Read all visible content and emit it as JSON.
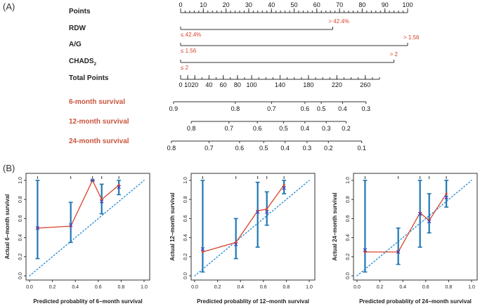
{
  "figure": {
    "panel_a_label": "(A)",
    "panel_b_label": "(B)"
  },
  "chart_data": [
    {
      "type": "nomogram",
      "rows": [
        {
          "key": "points",
          "label": "Points",
          "kind": "scale",
          "min": 0,
          "max": 100,
          "ticks": [
            0,
            10,
            20,
            30,
            40,
            50,
            60,
            70,
            80,
            90,
            100
          ],
          "minor_step": 2
        },
        {
          "key": "rdw",
          "label": "RDW",
          "kind": "binary",
          "low_label": "≤ 42.4%",
          "high_label": "> 42.4%",
          "low_points": 0,
          "high_points": 67
        },
        {
          "key": "ag",
          "label": "A/G",
          "kind": "binary",
          "low_label": "≤ 1.56",
          "high_label": "> 1.56",
          "low_points": 0,
          "high_points": 100
        },
        {
          "key": "chads",
          "label": "CHADS",
          "label_sub": "2",
          "kind": "binary",
          "low_label": "≤ 2",
          "high_label": "> 2",
          "low_points": 0,
          "high_points": 94
        },
        {
          "key": "total",
          "label": "Total Points",
          "kind": "scale",
          "min": 0,
          "max": 280,
          "ticks": [
            0,
            10,
            20,
            40,
            60,
            80,
            100,
            140,
            180,
            220,
            260
          ],
          "minor_step": 10
        },
        {
          "key": "s6",
          "label": "6-month survival",
          "kind": "prob",
          "ticks": [
            "0.9",
            "0.8",
            "0.7",
            "0.6",
            "0.5",
            "0.4",
            "0.3"
          ],
          "total_points": [
            -10,
            77,
            128,
            175,
            198,
            228,
            261
          ]
        },
        {
          "key": "s12",
          "label": "12-month survival",
          "kind": "prob",
          "ticks": [
            "0.8",
            "0.7",
            "0.6",
            "0.5",
            "0.4",
            "0.3",
            "0.2"
          ],
          "total_points": [
            15,
            68,
            108,
            145,
            175,
            205,
            233
          ]
        },
        {
          "key": "s24",
          "label": "24-month survival",
          "kind": "prob",
          "ticks": [
            "0.8",
            "0.7",
            "0.6",
            "0.5",
            "0.4",
            "0.3",
            "0.2",
            "0.1"
          ],
          "total_points": [
            -13,
            40,
            83,
            117,
            147,
            178,
            208,
            255
          ]
        }
      ]
    },
    {
      "type": "calibration",
      "key": "cal6",
      "xlabel": "Predicted probablity of 6−month survival",
      "ylabel": "Actual 6−month survival",
      "xlim": [
        0,
        1
      ],
      "ylim": [
        0,
        1
      ],
      "xticks": [
        "0.0",
        "0.2",
        "0.4",
        "0.6",
        "0.8",
        "1.0"
      ],
      "yticks": [
        "0.0",
        "0.2",
        "0.4",
        "0.6",
        "0.8",
        "1.0"
      ],
      "points": [
        {
          "x": 0.07,
          "y": 0.5,
          "lo": 0.18,
          "hi": 1.0
        },
        {
          "x": 0.36,
          "y": 0.53,
          "lo": 0.35,
          "hi": 0.77
        },
        {
          "x": 0.55,
          "y": 1.0,
          "lo": 1.0,
          "hi": 1.0
        },
        {
          "x": 0.63,
          "y": 0.78,
          "lo": 0.65,
          "hi": 0.96
        },
        {
          "x": 0.78,
          "y": 0.93,
          "lo": 0.85,
          "hi": 1.0
        }
      ],
      "apparent": [
        0.07,
        0.36,
        0.55,
        0.63,
        0.78
      ],
      "apparent_y": [
        0.5,
        0.52,
        1.0,
        0.8,
        0.95
      ]
    },
    {
      "type": "calibration",
      "key": "cal12",
      "xlabel": "Predicted probablity of 12−month survival",
      "ylabel": "Actual 12−month survival",
      "xlim": [
        0,
        1
      ],
      "ylim": [
        0,
        1
      ],
      "xticks": [
        "0.0",
        "0.2",
        "0.4",
        "0.6",
        "0.8",
        "1.0"
      ],
      "yticks": [
        "0.0",
        "0.2",
        "0.4",
        "0.6",
        "0.8",
        "1.0"
      ],
      "points": [
        {
          "x": 0.07,
          "y": 0.28,
          "lo": 0.04,
          "hi": 1.0
        },
        {
          "x": 0.36,
          "y": 0.33,
          "lo": 0.18,
          "hi": 0.6
        },
        {
          "x": 0.55,
          "y": 0.67,
          "lo": 0.3,
          "hi": 0.98
        },
        {
          "x": 0.63,
          "y": 0.67,
          "lo": 0.53,
          "hi": 0.88
        },
        {
          "x": 0.78,
          "y": 0.92,
          "lo": 0.86,
          "hi": 1.0
        }
      ],
      "apparent": [
        0.07,
        0.36,
        0.55,
        0.63,
        0.78
      ],
      "apparent_y": [
        0.25,
        0.35,
        0.68,
        0.7,
        0.95
      ]
    },
    {
      "type": "calibration",
      "key": "cal24",
      "xlabel": "Predicted probablity of 24−month survival",
      "ylabel": "Actual 24−month survival",
      "xlim": [
        0,
        1
      ],
      "ylim": [
        0,
        1
      ],
      "xticks": [
        "0.0",
        "0.2",
        "0.4",
        "0.6",
        "0.8",
        "1.0"
      ],
      "yticks": [
        "0.0",
        "0.2",
        "0.4",
        "0.6",
        "0.8",
        "1.0"
      ],
      "points": [
        {
          "x": 0.07,
          "y": 0.27,
          "lo": 0.04,
          "hi": 1.0
        },
        {
          "x": 0.36,
          "y": 0.25,
          "lo": 0.12,
          "hi": 0.5
        },
        {
          "x": 0.55,
          "y": 0.65,
          "lo": 0.3,
          "hi": 1.0
        },
        {
          "x": 0.63,
          "y": 0.57,
          "lo": 0.45,
          "hi": 0.86
        },
        {
          "x": 0.78,
          "y": 0.82,
          "lo": 0.72,
          "hi": 1.0
        }
      ],
      "apparent": [
        0.07,
        0.36,
        0.55,
        0.63,
        0.78
      ],
      "apparent_y": [
        0.25,
        0.25,
        0.66,
        0.58,
        0.86
      ]
    }
  ],
  "colors": {
    "red": "#d9432b",
    "blue": "#1f77b4",
    "dotted": "#2a8fd6",
    "label_red": "#c8553d"
  }
}
